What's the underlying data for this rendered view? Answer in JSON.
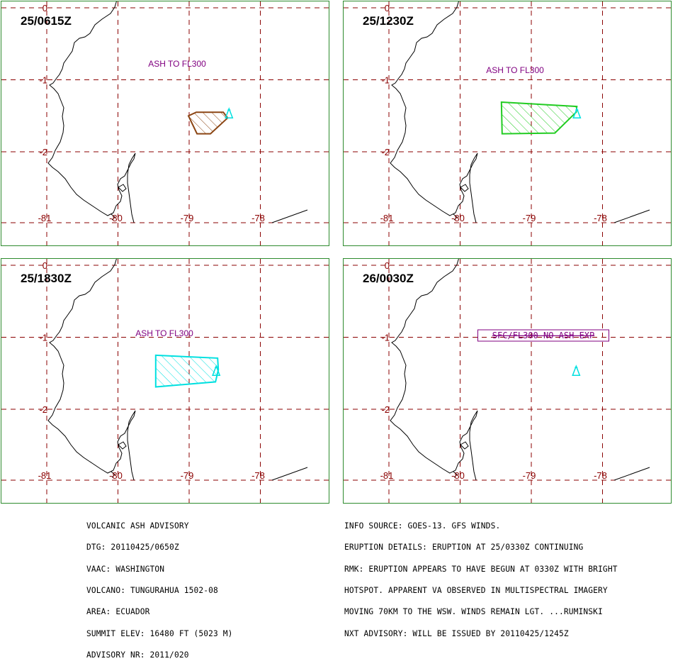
{
  "panels": [
    {
      "time": "25/0615Z",
      "label": "ASH TO FL300",
      "label_style": "plain",
      "ash_polygon": [
        [
          -78.9,
          -1.45
        ],
        [
          -78.52,
          -1.45
        ],
        [
          -78.46,
          -1.53
        ],
        [
          -78.7,
          -1.75
        ],
        [
          -78.89,
          -1.75
        ],
        [
          -79.01,
          -1.5
        ]
      ],
      "ash_color": "#8b4513",
      "volcano": {
        "lon": -78.44,
        "lat": -1.47,
        "color": "#00e0e0"
      }
    },
    {
      "time": "25/1230Z",
      "label": "ASH TO FL300",
      "label_style": "plain",
      "ash_polygon": [
        [
          -79.42,
          -1.31
        ],
        [
          -78.36,
          -1.37
        ],
        [
          -78.37,
          -1.45
        ],
        [
          -78.67,
          -1.74
        ],
        [
          -79.41,
          -1.75
        ]
      ],
      "ash_color": "#22cc22",
      "volcano": {
        "lon": -78.36,
        "lat": -1.47,
        "color": "#00e0e0"
      }
    },
    {
      "time": "25/1830Z",
      "label": "ASH TO FL300",
      "label_style": "plain",
      "ash_polygon": [
        [
          -79.47,
          -1.25
        ],
        [
          -78.6,
          -1.29
        ],
        [
          -78.59,
          -1.45
        ],
        [
          -78.63,
          -1.62
        ],
        [
          -79.47,
          -1.69
        ]
      ],
      "ash_color": "#00e0e0",
      "volcano": {
        "lon": -78.62,
        "lat": -1.47,
        "color": "#00e0e0"
      }
    },
    {
      "time": "26/0030Z",
      "label": "SFC/FL300 NO ASH EXP",
      "label_style": "boxed",
      "ash_polygon": [],
      "ash_color": "#cc33cc",
      "volcano": {
        "lon": -78.37,
        "lat": -1.47,
        "color": "#00e0e0"
      }
    }
  ],
  "axes": {
    "lon_ticks": [
      "-81",
      "-80",
      "-79",
      "-78"
    ],
    "lat_ticks": [
      "0",
      "-1",
      "-2"
    ],
    "grid_color": "#8b0000",
    "tick_color": "#8b0000"
  },
  "label_color": "#800080",
  "advisory_left": [
    "VOLCANIC ASH ADVISORY",
    "DTG: 20110425/0650Z",
    "VAAC: WASHINGTON",
    "VOLCANO: TUNGURAHUA 1502-08",
    "AREA: ECUADOR",
    "SUMMIT ELEV: 16480 FT (5023 M)",
    "ADVISORY NR: 2011/020"
  ],
  "advisory_right": [
    "INFO SOURCE: GOES-13. GFS WINDS.",
    "ERUPTION DETAILS: ERUPTION AT 25/0330Z CONTINUING",
    "RMK: ERUPTION APPEARS TO HAVE BEGUN AT 0330Z WITH BRIGHT",
    "HOTSPOT. APPARENT VA OBSERVED IN MULTISPECTRAL IMAGERY",
    "MOVING 70KM TO THE WSW. WINDS REMAIN LGT. ...RUMINSKI",
    "NXT ADVISORY: WILL BE ISSUED BY 20110425/1245Z"
  ]
}
